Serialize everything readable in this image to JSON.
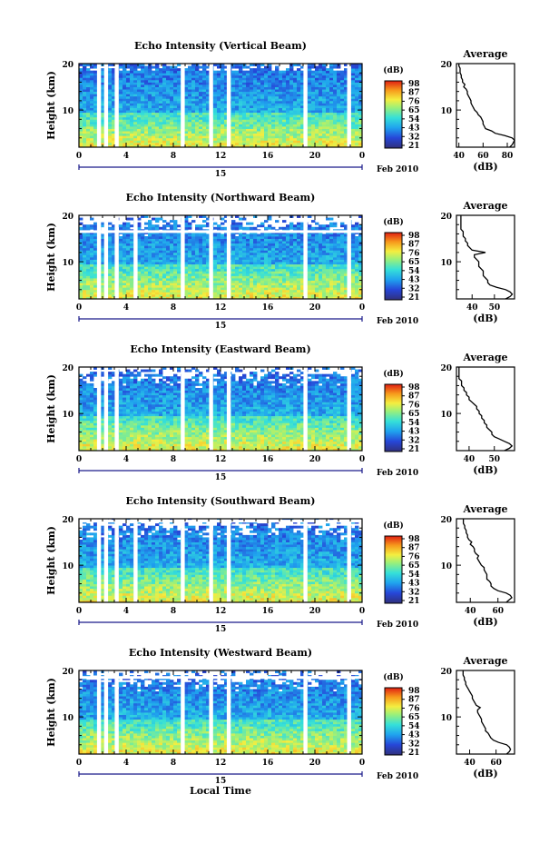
{
  "chart_data": [
    {
      "type": "heatmap",
      "title": "Echo Intensity (Vertical Beam)",
      "ylabel": "Height (km)",
      "x_ticks": [
        "0",
        "4",
        "8",
        "12",
        "16",
        "20",
        "0"
      ],
      "date_label": "15",
      "date_suffix": "Feb 2010",
      "y_ticks": [
        "20",
        "10"
      ],
      "ylim": [
        2,
        20
      ],
      "xlim": [
        0,
        24
      ],
      "colorbar_unit": "(dB)",
      "colorbar_ticks": [
        "98",
        "87",
        "76",
        "65",
        "54",
        "43",
        "32",
        "21"
      ],
      "gaps_hours": [
        1.7,
        2.3,
        3.2,
        8.8,
        11.2,
        12.7,
        19.2,
        22.9
      ],
      "white_rows": [],
      "avg_title": "Average",
      "avg_xlabel": "(dB)",
      "avg_xticks": [
        "40",
        "60",
        "80"
      ],
      "avg_xlim": [
        38,
        86
      ],
      "avg_yticks": [
        "20",
        "10"
      ],
      "avg_profile": {
        "heights": [
          2,
          2.5,
          3,
          3.5,
          4,
          4.5,
          5,
          5.5,
          6,
          6.5,
          7,
          7.5,
          8,
          8.5,
          9,
          9.5,
          10,
          10.5,
          11,
          11.5,
          12,
          12.5,
          13,
          13.5,
          14,
          14.5,
          15,
          15.5,
          16,
          16.5,
          17,
          17.5,
          18,
          18.5,
          19,
          19.5,
          20
        ],
        "values": [
          82,
          84,
          85,
          86,
          84,
          78,
          70,
          67,
          62,
          61,
          60,
          60,
          59,
          58,
          56,
          55,
          53,
          52,
          51,
          50,
          50,
          49,
          48,
          47,
          47,
          46,
          44,
          45,
          43,
          43,
          42,
          42,
          41,
          41,
          41,
          40,
          40
        ]
      }
    },
    {
      "type": "heatmap",
      "title": "Echo Intensity (Northward Beam)",
      "ylabel": "Height (km)",
      "x_ticks": [
        "0",
        "4",
        "8",
        "12",
        "16",
        "20",
        "0"
      ],
      "date_label": "15",
      "date_suffix": "Feb 2010",
      "y_ticks": [
        "20",
        "10"
      ],
      "ylim": [
        2,
        20
      ],
      "xlim": [
        0,
        24
      ],
      "colorbar_unit": "(dB)",
      "colorbar_ticks": [
        "98",
        "87",
        "76",
        "65",
        "54",
        "43",
        "32",
        "21"
      ],
      "gaps_hours": [
        1.7,
        2.3,
        3.2,
        4.8,
        8.8,
        11.2,
        12.7,
        19.2,
        22.9
      ],
      "white_rows": [
        16.5
      ],
      "avg_title": "Average",
      "avg_xlabel": "(dB)",
      "avg_xticks": [
        "40",
        "50"
      ],
      "avg_xlim": [
        33,
        59
      ],
      "avg_yticks": [
        "20",
        "10"
      ],
      "avg_profile": {
        "heights": [
          2,
          2.5,
          3,
          3.5,
          4,
          4.5,
          5,
          5.5,
          6,
          6.5,
          7,
          7.5,
          8,
          8.5,
          9,
          9.5,
          10,
          10.5,
          11,
          11.5,
          12,
          12.5,
          13,
          13.5,
          14,
          14.5,
          15,
          15.5,
          16,
          16.5,
          17,
          17.5,
          18,
          18.5,
          19,
          19.5,
          20
        ],
        "values": [
          55,
          57,
          58,
          57,
          55,
          51,
          48,
          47,
          47,
          46,
          45,
          45,
          45,
          44,
          43,
          43,
          43,
          42,
          41,
          41,
          46,
          40,
          39,
          38,
          38,
          37,
          37,
          36,
          36,
          36,
          35,
          35,
          35,
          35,
          35,
          35,
          35
        ]
      }
    },
    {
      "type": "heatmap",
      "title": "Echo Intensity (Eastward Beam)",
      "ylabel": "Height (km)",
      "x_ticks": [
        "0",
        "4",
        "8",
        "12",
        "16",
        "20",
        "0"
      ],
      "date_label": "15",
      "date_suffix": "Feb 2010",
      "y_ticks": [
        "20",
        "10"
      ],
      "ylim": [
        2,
        20
      ],
      "xlim": [
        0,
        24
      ],
      "colorbar_unit": "(dB)",
      "colorbar_ticks": [
        "98",
        "87",
        "76",
        "65",
        "54",
        "43",
        "32",
        "21"
      ],
      "gaps_hours": [
        1.7,
        2.3,
        3.2,
        8.8,
        11.2,
        12.7,
        19.2,
        22.9
      ],
      "white_rows": [],
      "avg_title": "Average",
      "avg_xlabel": "(dB)",
      "avg_xticks": [
        "40",
        "50"
      ],
      "avg_xlim": [
        35,
        58
      ],
      "avg_yticks": [
        "20",
        "10"
      ],
      "avg_profile": {
        "heights": [
          2,
          2.5,
          3,
          3.5,
          4,
          4.5,
          5,
          5.5,
          6,
          6.5,
          7,
          7.5,
          8,
          8.5,
          9,
          9.5,
          10,
          10.5,
          11,
          11.5,
          12,
          12.5,
          13,
          13.5,
          14,
          14.5,
          15,
          15.5,
          16,
          16.5,
          17,
          17.5,
          18,
          18.5,
          19,
          19.5,
          20
        ],
        "values": [
          54,
          56,
          57,
          56,
          54,
          52,
          50,
          49,
          49,
          48,
          47,
          47,
          46,
          46,
          45,
          45,
          44,
          44,
          43,
          43,
          42,
          41,
          40,
          40,
          39,
          39,
          38,
          38,
          37,
          37,
          37,
          36,
          36,
          36,
          36,
          36,
          36
        ]
      }
    },
    {
      "type": "heatmap",
      "title": "Echo Intensity (Southward Beam)",
      "ylabel": "Height (km)",
      "x_ticks": [
        "0",
        "4",
        "8",
        "12",
        "16",
        "20",
        "0"
      ],
      "date_label": "15",
      "date_suffix": "Feb 2010",
      "y_ticks": [
        "20",
        "10"
      ],
      "ylim": [
        2,
        20
      ],
      "xlim": [
        0,
        24
      ],
      "colorbar_unit": "(dB)",
      "colorbar_ticks": [
        "98",
        "87",
        "76",
        "65",
        "54",
        "43",
        "32",
        "21"
      ],
      "gaps_hours": [
        1.7,
        2.3,
        3.2,
        4.8,
        8.8,
        11.2,
        12.7,
        19.2,
        22.9
      ],
      "white_rows": [
        19.5
      ],
      "avg_title": "Average",
      "avg_xlabel": "(dB)",
      "avg_xticks": [
        "40",
        "60"
      ],
      "avg_xlim": [
        30,
        72
      ],
      "avg_yticks": [
        "20",
        "10"
      ],
      "avg_profile": {
        "heights": [
          2,
          2.5,
          3,
          3.5,
          4,
          4.5,
          5,
          5.5,
          6,
          6.5,
          7,
          7.5,
          8,
          8.5,
          9,
          9.5,
          10,
          10.5,
          11,
          11.5,
          12,
          12.5,
          13,
          13.5,
          14,
          14.5,
          15,
          15.5,
          16,
          16.5,
          17,
          17.5,
          18,
          18.5,
          19,
          19.5,
          20
        ],
        "values": [
          66,
          68,
          70,
          69,
          66,
          60,
          57,
          55,
          55,
          54,
          52,
          52,
          52,
          51,
          50,
          50,
          48,
          47,
          46,
          45,
          46,
          44,
          43,
          43,
          42,
          40,
          41,
          39,
          38,
          38,
          37,
          37,
          36,
          36,
          35,
          35,
          35
        ]
      }
    },
    {
      "type": "heatmap",
      "title": "Echo Intensity (Westward Beam)",
      "ylabel": "Height (km)",
      "xlabel": "Local Time",
      "x_ticks": [
        "0",
        "4",
        "8",
        "12",
        "16",
        "20",
        "0"
      ],
      "date_label": "15",
      "date_suffix": "Feb 2010",
      "y_ticks": [
        "20",
        "10"
      ],
      "ylim": [
        2,
        20
      ],
      "xlim": [
        0,
        24
      ],
      "colorbar_unit": "(dB)",
      "colorbar_ticks": [
        "98",
        "87",
        "76",
        "65",
        "54",
        "43",
        "32",
        "21"
      ],
      "gaps_hours": [
        1.7,
        2.3,
        3.2,
        8.8,
        11.2,
        12.7,
        19.2,
        22.9
      ],
      "white_rows": [
        18.5
      ],
      "avg_title": "Average",
      "avg_xlabel": "(dB)",
      "avg_xticks": [
        "40",
        "60"
      ],
      "avg_xlim": [
        30,
        74
      ],
      "avg_yticks": [
        "20",
        "10"
      ],
      "avg_profile": {
        "heights": [
          2,
          2.5,
          3,
          3.5,
          4,
          4.5,
          5,
          5.5,
          6,
          6.5,
          7,
          7.5,
          8,
          8.5,
          9,
          9.5,
          10,
          10.5,
          11,
          11.5,
          12,
          12.5,
          13,
          13.5,
          14,
          14.5,
          15,
          15.5,
          16,
          16.5,
          17,
          17.5,
          18,
          18.5,
          19,
          19.5,
          20
        ],
        "values": [
          68,
          70,
          71,
          70,
          68,
          62,
          58,
          56,
          55,
          54,
          52,
          52,
          51,
          50,
          49,
          49,
          48,
          47,
          46,
          46,
          48,
          45,
          44,
          43,
          42,
          42,
          41,
          40,
          39,
          38,
          37,
          37,
          36,
          36,
          35,
          35,
          35
        ]
      }
    }
  ]
}
